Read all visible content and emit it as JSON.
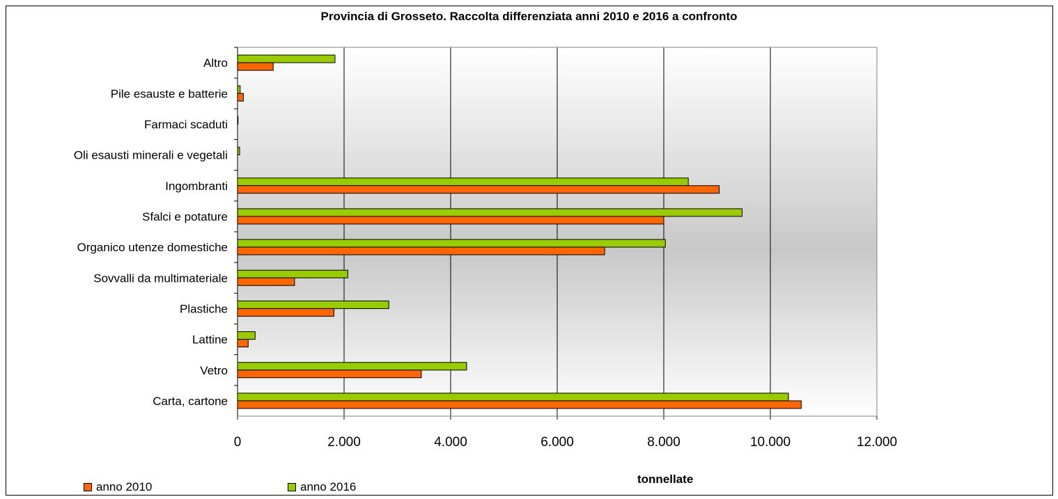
{
  "chart_data": {
    "type": "bar",
    "orientation": "horizontal",
    "title": "Provincia di Grosseto. Raccolta differenziata anni 2010 e 2016 a confronto",
    "xlabel": "tonnellate",
    "ylabel": "",
    "xlim": [
      0,
      12000
    ],
    "x_ticks": [
      "0",
      "2.000",
      "4.000",
      "6.000",
      "8.000",
      "10.000",
      "12.000"
    ],
    "grid": "vertical major gridlines",
    "legend_position": "bottom-left",
    "categories": [
      "Carta, cartone",
      "Vetro",
      "Lattine",
      "Plastiche",
      "Sovvalli da multimateriale",
      "Organico utenze domestiche",
      "Sfalci e potature",
      "Ingombranti",
      "Oli esausti minerali e vegetali",
      "Farmaci scaduti",
      "Pile esauste e batterie",
      "Altro"
    ],
    "series": [
      {
        "name": "anno 2010",
        "color": "#FF6600",
        "values": [
          10580,
          3450,
          200,
          1810,
          1070,
          6890,
          8000,
          9040,
          0,
          0,
          110,
          670
        ]
      },
      {
        "name": "anno 2016",
        "color": "#99CC00",
        "values": [
          10340,
          4300,
          330,
          2840,
          2070,
          8030,
          9470,
          8460,
          40,
          10,
          50,
          1830
        ]
      }
    ]
  }
}
